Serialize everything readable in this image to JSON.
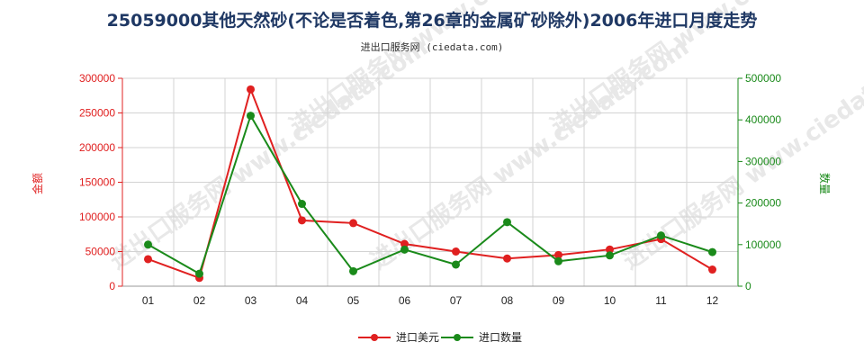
{
  "title": "25059000其他天然砂(不论是否着色,第26章的金属矿砂除外)2006年进口月度走势",
  "subtitle": "进出口服务网 (ciedata.com)",
  "watermark": "进出口服务网 www.ciedata.com",
  "chart_data": {
    "type": "line",
    "categories": [
      "01",
      "02",
      "03",
      "04",
      "05",
      "06",
      "07",
      "08",
      "09",
      "10",
      "11",
      "12"
    ],
    "y_left": {
      "label": "金额",
      "ylim": [
        0,
        300000
      ],
      "ticks": [
        0,
        50000,
        100000,
        150000,
        200000,
        250000,
        300000
      ],
      "color": "#e02020"
    },
    "y_right": {
      "label": "数量",
      "ylim": [
        0,
        500000
      ],
      "ticks": [
        0,
        100000,
        200000,
        300000,
        400000,
        500000
      ],
      "color": "#1a8a1a"
    },
    "series": [
      {
        "name": "进口美元",
        "axis": "left",
        "color": "#e02020",
        "values": [
          39000,
          12000,
          284000,
          95000,
          91000,
          61000,
          50000,
          40000,
          45000,
          53000,
          68000,
          24000
        ]
      },
      {
        "name": "进口数量",
        "axis": "right",
        "color": "#1a8a1a",
        "values": [
          100000,
          30000,
          410000,
          198000,
          36000,
          88000,
          52000,
          154000,
          60000,
          74000,
          122000,
          82000
        ]
      }
    ],
    "grid": true,
    "legend": "bottom"
  }
}
